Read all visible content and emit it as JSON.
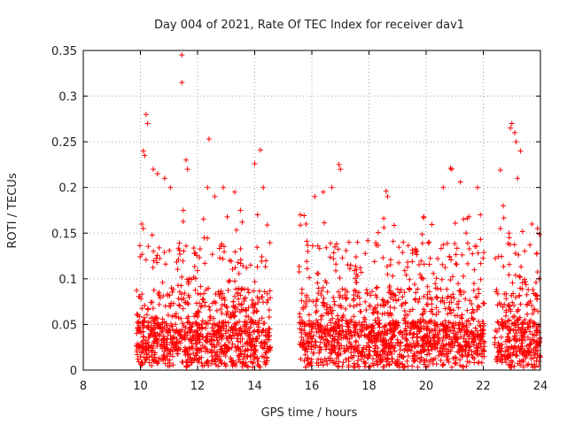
{
  "chart_data": {
    "type": "scatter",
    "title": "Day 004 of 2021, Rate Of TEC Index for receiver dav1",
    "xlabel": "GPS time / hours",
    "ylabel": "ROTI / TECUs",
    "xlim": [
      8,
      24
    ],
    "ylim": [
      0,
      0.35
    ],
    "xticks": [
      8,
      10,
      12,
      14,
      16,
      18,
      20,
      22,
      24
    ],
    "yticks": [
      0,
      0.05,
      0.1,
      0.15,
      0.2,
      0.25,
      0.3,
      0.35
    ],
    "xtick_labels": [
      "8",
      "10",
      "12",
      "14",
      "16",
      "18",
      "20",
      "22",
      "24"
    ],
    "ytick_labels": [
      "0",
      "0.05",
      "0.1",
      "0.15",
      "0.2",
      "0.25",
      "0.3",
      "0.35"
    ],
    "grid": true,
    "marker": "+",
    "color": "#ff0000",
    "coverage_segments": [
      [
        9.85,
        14.55
      ],
      [
        15.55,
        22.05
      ],
      [
        22.4,
        24.0
      ]
    ],
    "points": [
      [
        10.2,
        0.28
      ],
      [
        10.25,
        0.27
      ],
      [
        10.15,
        0.235
      ],
      [
        10.1,
        0.24
      ],
      [
        10.05,
        0.16
      ],
      [
        10.1,
        0.155
      ],
      [
        10.45,
        0.22
      ],
      [
        10.6,
        0.215
      ],
      [
        10.85,
        0.21
      ],
      [
        11.05,
        0.2
      ],
      [
        11.45,
        0.345
      ],
      [
        11.45,
        0.315
      ],
      [
        11.6,
        0.23
      ],
      [
        11.65,
        0.22
      ],
      [
        11.5,
        0.175
      ],
      [
        12.4,
        0.253
      ],
      [
        12.35,
        0.2
      ],
      [
        12.6,
        0.19
      ],
      [
        12.9,
        0.2
      ],
      [
        13.3,
        0.195
      ],
      [
        13.5,
        0.175
      ],
      [
        14.0,
        0.226
      ],
      [
        14.2,
        0.241
      ],
      [
        14.3,
        0.2
      ],
      [
        14.1,
        0.17
      ],
      [
        15.6,
        0.17
      ],
      [
        15.8,
        0.16
      ],
      [
        16.1,
        0.19
      ],
      [
        16.4,
        0.195
      ],
      [
        16.7,
        0.2
      ],
      [
        16.95,
        0.225
      ],
      [
        17.0,
        0.22
      ],
      [
        17.3,
        0.14
      ],
      [
        17.6,
        0.14
      ],
      [
        18.6,
        0.196
      ],
      [
        18.65,
        0.19
      ],
      [
        19.2,
        0.14
      ],
      [
        19.9,
        0.1
      ],
      [
        20.6,
        0.2
      ],
      [
        20.85,
        0.221
      ],
      [
        20.9,
        0.22
      ],
      [
        21.2,
        0.206
      ],
      [
        21.4,
        0.15
      ],
      [
        21.8,
        0.2
      ],
      [
        21.9,
        0.17
      ],
      [
        22.6,
        0.219
      ],
      [
        22.7,
        0.18
      ],
      [
        22.95,
        0.265
      ],
      [
        23.0,
        0.27
      ],
      [
        23.1,
        0.26
      ],
      [
        23.15,
        0.25
      ],
      [
        23.3,
        0.24
      ],
      [
        23.2,
        0.21
      ],
      [
        23.7,
        0.16
      ],
      [
        23.9,
        0.155
      ],
      [
        22.9,
        0.15
      ],
      [
        22.6,
        0.155
      ]
    ]
  }
}
